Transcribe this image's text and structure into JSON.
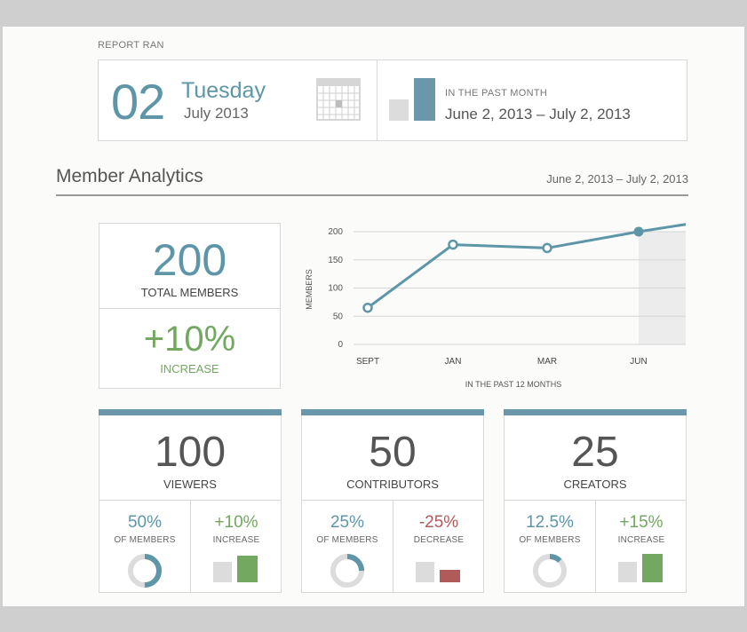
{
  "report": {
    "label": "REPORT RAN",
    "day_number": "02",
    "day_name": "Tuesday",
    "month_year": "July 2013",
    "icons": [
      "calendar-icon",
      "bar-compare-icon"
    ],
    "past_label": "IN THE PAST MONTH",
    "past_range": "June 2, 2013 – July 2, 2013"
  },
  "analytics": {
    "title": "Member Analytics",
    "range": "June 2, 2013 – July 2, 2013"
  },
  "total": {
    "value": "200",
    "label": "TOTAL MEMBERS",
    "change": "+10%",
    "change_label": "INCREASE"
  },
  "chart_data": {
    "type": "line",
    "x": [
      "SEPT",
      "JAN",
      "MAR",
      "JUN"
    ],
    "values": [
      65,
      177,
      171,
      200
    ],
    "ylabel": "MEMBERS",
    "xlabel": "IN THE PAST 12 MONTHS",
    "yticks": [
      "200",
      "150",
      "100",
      "50",
      "0"
    ],
    "ylim": [
      0,
      200
    ],
    "grid": true,
    "colors": {
      "line": "#5e96a8",
      "grid": "#d6d6d6",
      "highlight": "#ececec"
    }
  },
  "cards": [
    {
      "value": "100",
      "label": "VIEWERS",
      "share": "50%",
      "share_label": "OF MEMBERS",
      "share_fraction": 0.5,
      "change": "+10%",
      "change_label": "INCREASE",
      "change_type": "increase"
    },
    {
      "value": "50",
      "label": "CONTRIBUTORS",
      "share": "25%",
      "share_label": "OF MEMBERS",
      "share_fraction": 0.25,
      "change": "-25%",
      "change_label": "DECREASE",
      "change_type": "decrease"
    },
    {
      "value": "25",
      "label": "CREATORS",
      "share": "12.5%",
      "share_label": "OF MEMBERS",
      "share_fraction": 0.125,
      "change": "+15%",
      "change_label": "INCREASE",
      "change_type": "increase"
    }
  ],
  "colors": {
    "accent": "#5e96a8",
    "positive": "#73a860",
    "negative": "#b05a5a",
    "neutral": "#dcdcdc"
  }
}
